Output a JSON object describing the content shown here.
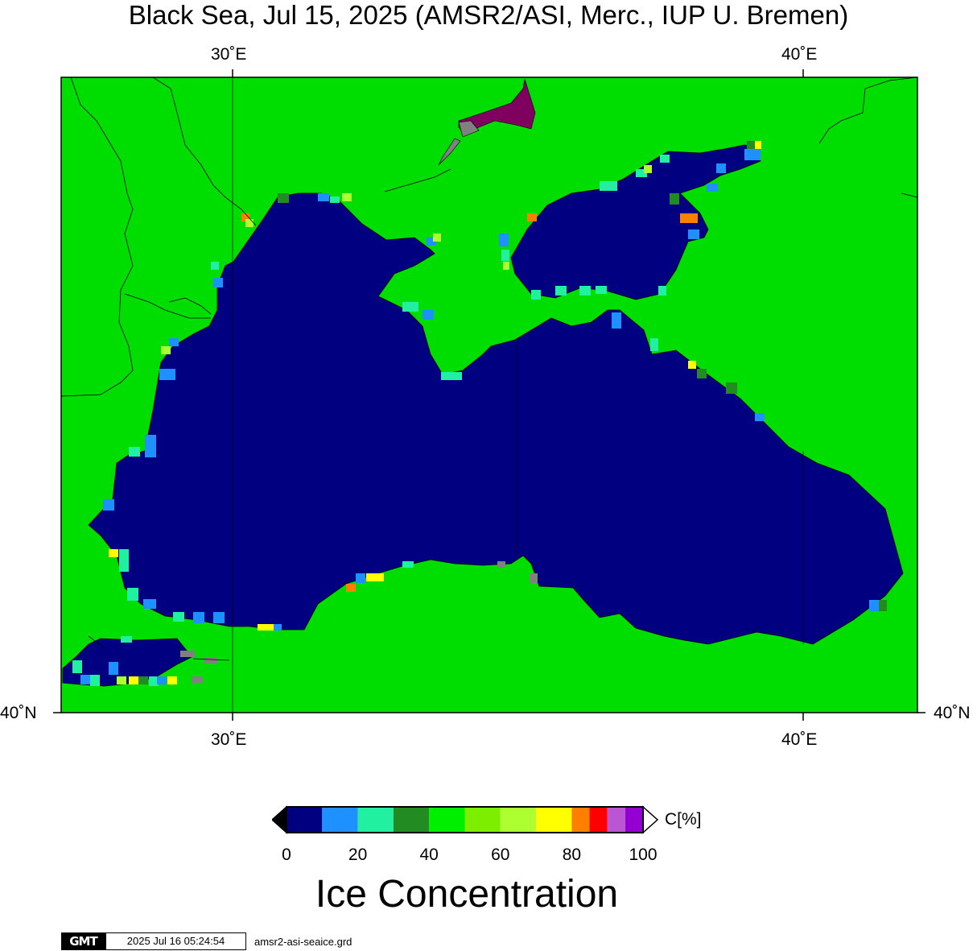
{
  "title": "Black Sea, Jul 15, 2025 (AMSR2/ASI, Merc., IUP U. Bremen)",
  "map": {
    "projection": "Mercator",
    "lon_range": [
      27,
      42
    ],
    "lat_bottom": 40,
    "colors": {
      "land": "#00dd00",
      "water": "#000080",
      "coast": "#000000",
      "grid": "#000000"
    },
    "axis_labels": {
      "top_30": "30˚E",
      "top_40": "40˚E",
      "bottom_30": "30˚E",
      "bottom_40": "40˚E",
      "left_40": "40˚N",
      "right_40": "40˚N"
    }
  },
  "legend": {
    "title": "Ice Concentration",
    "unit": "C[%]",
    "tick_labels": [
      "0",
      "20",
      "40",
      "60",
      "80",
      "100"
    ],
    "bins": [
      {
        "from": 0,
        "to": 10,
        "color": "#000080"
      },
      {
        "from": 10,
        "to": 20,
        "color": "#1e90ff"
      },
      {
        "from": 20,
        "to": 30,
        "color": "#20f0a0"
      },
      {
        "from": 30,
        "to": 40,
        "color": "#228b22"
      },
      {
        "from": 40,
        "to": 50,
        "color": "#00ee00"
      },
      {
        "from": 50,
        "to": 60,
        "color": "#7cee00"
      },
      {
        "from": 60,
        "to": 70,
        "color": "#adff2f"
      },
      {
        "from": 70,
        "to": 80,
        "color": "#ffff00"
      },
      {
        "from": 80,
        "to": 85,
        "color": "#ff7f00"
      },
      {
        "from": 85,
        "to": 90,
        "color": "#ff0000"
      },
      {
        "from": 90,
        "to": 95,
        "color": "#ba55d3"
      },
      {
        "from": 95,
        "to": 100,
        "color": "#9400d3"
      }
    ],
    "under_color": "#000000",
    "over_color": "#ffffff"
  },
  "footer": {
    "logo_text": "GMT",
    "timestamp": "2025 Jul 16 05:24:54",
    "grid_file": "amsr2-asi-seaice.grd"
  }
}
